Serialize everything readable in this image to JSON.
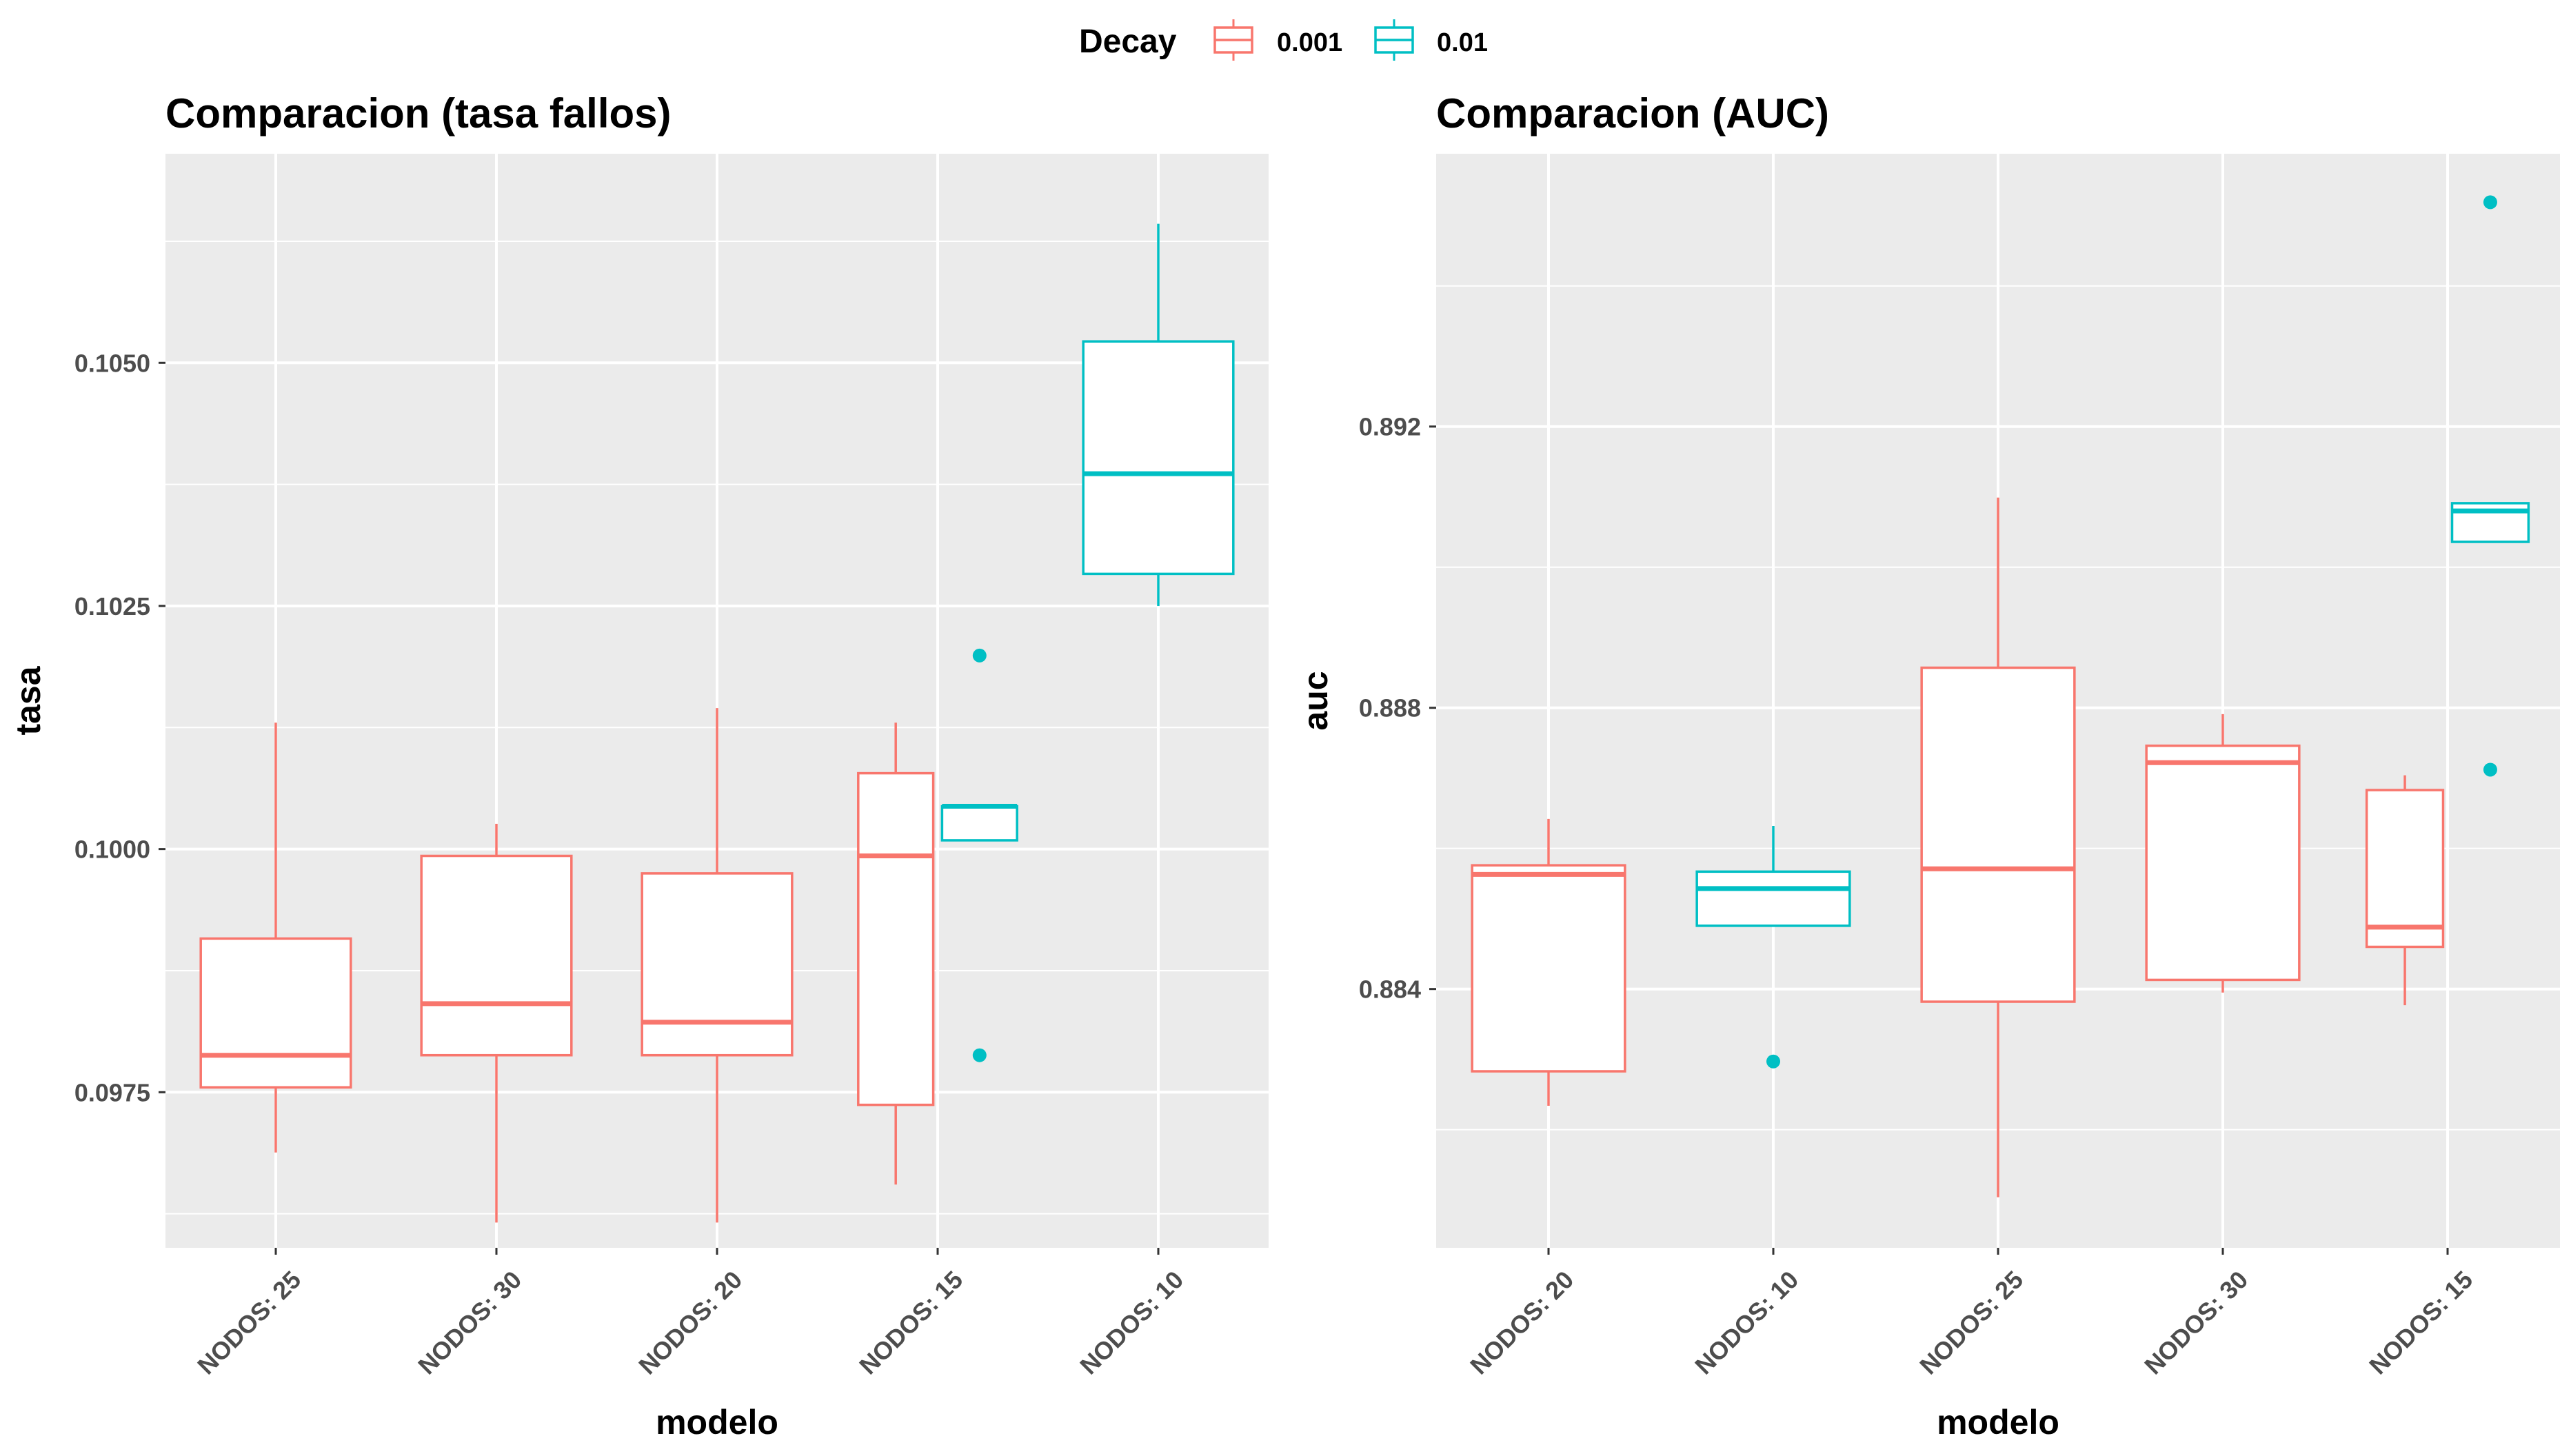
{
  "legend": {
    "title": "Decay",
    "entries": [
      {
        "label": "0.001",
        "color": "#F8766D"
      },
      {
        "label": "0.01",
        "color": "#00BFC4"
      }
    ]
  },
  "colors": {
    "panel_bg": "#EBEBEB",
    "grid": "#FFFFFF",
    "decay_0001": "#F8766D",
    "decay_001": "#00BFC4"
  },
  "chart_data": [
    {
      "type": "boxplot",
      "title": "Comparacion (tasa fallos)",
      "xlabel": "modelo",
      "ylabel": "tasa",
      "ylim": [
        0.0959,
        0.10715
      ],
      "yticks": [
        0.0975,
        0.1,
        0.1025,
        0.105
      ],
      "ytick_labels": [
        "0.0975",
        "0.1000",
        "0.1025",
        "0.1050"
      ],
      "categories": [
        "NODOS: 25",
        "NODOS: 30",
        "NODOS: 20",
        "NODOS: 15",
        "NODOS: 10"
      ],
      "grid": true,
      "legend_position": "top",
      "boxes": [
        {
          "category": "NODOS: 25",
          "decay": "0.001",
          "min": 0.09688,
          "q1": 0.09755,
          "median": 0.09788,
          "q3": 0.09908,
          "max": 0.1013,
          "outliers": []
        },
        {
          "category": "NODOS: 30",
          "decay": "0.001",
          "min": 0.09616,
          "q1": 0.09788,
          "median": 0.09841,
          "q3": 0.09993,
          "max": 0.10026,
          "outliers": []
        },
        {
          "category": "NODOS: 20",
          "decay": "0.001",
          "min": 0.09616,
          "q1": 0.09788,
          "median": 0.09822,
          "q3": 0.09975,
          "max": 0.10145,
          "outliers": []
        },
        {
          "category": "NODOS: 15",
          "decay": "0.001",
          "min": 0.09655,
          "q1": 0.09737,
          "median": 0.09993,
          "q3": 0.10078,
          "max": 0.1013,
          "outliers": []
        },
        {
          "category": "NODOS: 15",
          "decay": "0.01",
          "min": 0.10009,
          "q1": 0.10009,
          "median": 0.10044,
          "q3": 0.10044,
          "max": 0.10044,
          "outliers": [
            0.10199,
            0.09788
          ]
        },
        {
          "category": "NODOS: 10",
          "decay": "0.01",
          "min": 0.1025,
          "q1": 0.10283,
          "median": 0.10386,
          "q3": 0.10522,
          "max": 0.10643,
          "outliers": []
        }
      ]
    },
    {
      "type": "boxplot",
      "title": "Comparacion (AUC)",
      "xlabel": "modelo",
      "ylabel": "auc",
      "ylim": [
        0.88032,
        0.89588
      ],
      "yticks": [
        0.884,
        0.888,
        0.892
      ],
      "ytick_labels": [
        "0.884",
        "0.888",
        "0.892"
      ],
      "categories": [
        "NODOS: 20",
        "NODOS: 10",
        "NODOS: 25",
        "NODOS: 30",
        "NODOS: 15"
      ],
      "grid": true,
      "legend_position": "top",
      "boxes": [
        {
          "category": "NODOS: 20",
          "decay": "0.001",
          "min": 0.88234,
          "q1": 0.88283,
          "median": 0.88563,
          "q3": 0.88576,
          "max": 0.88642,
          "outliers": []
        },
        {
          "category": "NODOS: 10",
          "decay": "0.01",
          "min": 0.8849,
          "q1": 0.8849,
          "median": 0.88543,
          "q3": 0.88567,
          "max": 0.88632,
          "outliers": [
            0.88297
          ]
        },
        {
          "category": "NODOS: 25",
          "decay": "0.001",
          "min": 0.88104,
          "q1": 0.88382,
          "median": 0.88571,
          "q3": 0.88857,
          "max": 0.89099,
          "outliers": []
        },
        {
          "category": "NODOS: 30",
          "decay": "0.001",
          "min": 0.88395,
          "q1": 0.88413,
          "median": 0.88722,
          "q3": 0.88746,
          "max": 0.88791,
          "outliers": []
        },
        {
          "category": "NODOS: 15",
          "decay": "0.001",
          "min": 0.88377,
          "q1": 0.8846,
          "median": 0.88488,
          "q3": 0.88683,
          "max": 0.88704,
          "outliers": []
        },
        {
          "category": "NODOS: 15",
          "decay": "0.01",
          "min": 0.89036,
          "q1": 0.89036,
          "median": 0.8908,
          "q3": 0.89091,
          "max": 0.89091,
          "outliers": [
            0.89519,
            0.88712
          ]
        }
      ]
    }
  ]
}
